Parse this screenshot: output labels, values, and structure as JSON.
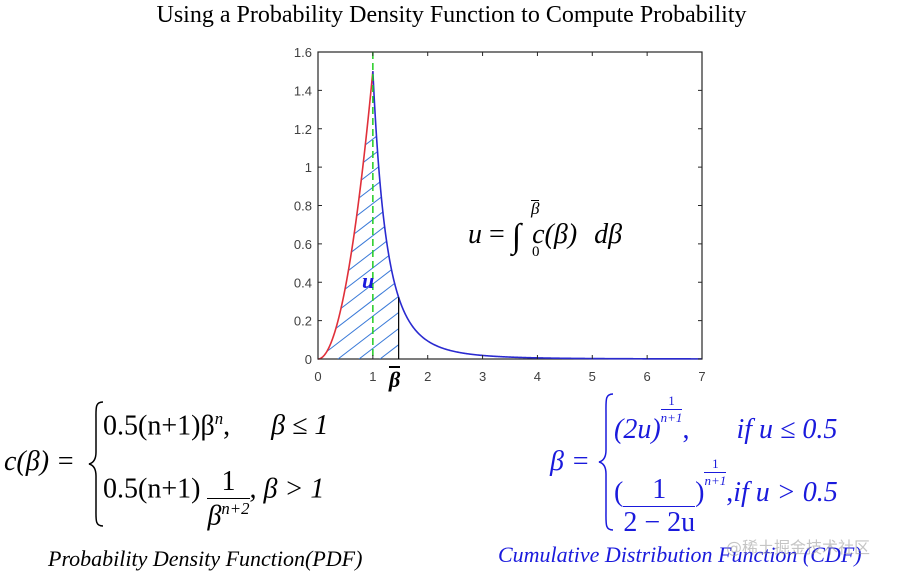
{
  "title": "Using a Probability Density Function to Compute Probability",
  "chart_data": {
    "type": "line",
    "title": "",
    "xlabel": "",
    "ylabel": "",
    "xlim": [
      0,
      7
    ],
    "ylim": [
      0,
      1.6
    ],
    "x_ticks": [
      "0",
      "1",
      "2",
      "3",
      "4",
      "5",
      "6",
      "7"
    ],
    "y_ticks": [
      "0",
      "0.2",
      "0.4",
      "0.6",
      "0.8",
      "1",
      "1.2",
      "1.4",
      "1.6"
    ],
    "grid": false,
    "n": 2,
    "series": [
      {
        "name": "c(beta), beta<=1",
        "color": "#e0303a",
        "formula": "0.5*(n+1)*beta^n",
        "x": [
          0,
          0.2,
          0.4,
          0.6,
          0.8,
          1.0
        ],
        "y": [
          0,
          0.06,
          0.24,
          0.54,
          0.96,
          1.5
        ]
      },
      {
        "name": "c(beta), beta>1",
        "color": "#2a2ad0",
        "formula": "0.5*(n+1)/beta^(n+2)",
        "x": [
          1.0,
          1.2,
          1.47,
          2,
          3,
          4,
          5,
          6,
          7
        ],
        "y": [
          1.5,
          0.72,
          0.32,
          0.094,
          0.019,
          0.006,
          0.0024,
          0.0012,
          0.0006
        ]
      },
      {
        "name": "beta=1 marker",
        "color": "#22cc22",
        "style": "dashed",
        "x": [
          1,
          1
        ],
        "y": [
          0,
          1.6
        ]
      }
    ],
    "shaded_region": {
      "from": 0,
      "to": 1.47,
      "hatch_color": "#3a7ad8",
      "label": "u"
    },
    "beta_bar": 1.47,
    "annotations": [
      "u",
      "β̄",
      "u = ∫₀^β̄ c(β) dβ"
    ]
  },
  "plot": {
    "shade_label": "u",
    "beta_bar_label": "β",
    "integral": {
      "lhs": "u",
      "eq": "=",
      "lower": "0",
      "upper": "β",
      "integrand": "c(β)",
      "d": "dβ"
    }
  },
  "pdf": {
    "lhs": "c(β) =",
    "case1_expr": "0.5(n+1)β",
    "case1_exp": "n",
    "case1_cond": "β ≤ 1",
    "case2_prefix": "0.5(n+1)",
    "case2_num": "1",
    "case2_den_base": "β",
    "case2_den_exp": "n+2",
    "case2_cond": ", β > 1",
    "caption": "Probability Density Function(PDF)"
  },
  "cdf": {
    "lhs": "β =",
    "case1_base": "(2u)",
    "case1_exp_num": "1",
    "case1_exp_den": "n+1",
    "case1_cond": "if  u ≤ 0.5",
    "case2_num": "1",
    "case2_den": "2 − 2u",
    "case2_exp_num": "1",
    "case2_exp_den": "n+1",
    "case2_cond": "if  u > 0.5",
    "caption": "Cumulative Distribution Function (CDF)"
  },
  "watermark": "@稀土掘金技术社区"
}
